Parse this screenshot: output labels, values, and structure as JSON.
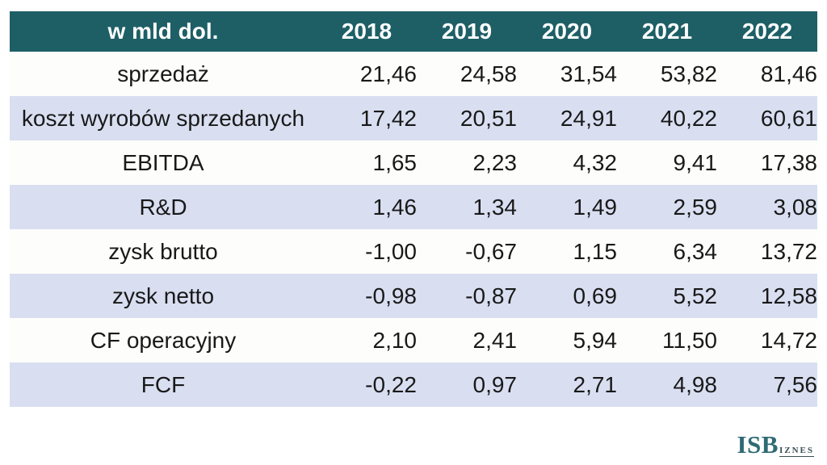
{
  "table": {
    "header": {
      "label": "w mld dol.",
      "years": [
        "2018",
        "2019",
        "2020",
        "2021",
        "2022"
      ]
    },
    "rows": [
      {
        "label": "sprzedaż",
        "values": [
          "21,46",
          "24,58",
          "31,54",
          "53,82",
          "81,46"
        ]
      },
      {
        "label": "koszt wyrobów sprzedanych",
        "values": [
          "17,42",
          "20,51",
          "24,91",
          "40,22",
          "60,61"
        ]
      },
      {
        "label": "EBITDA",
        "values": [
          "1,65",
          "2,23",
          "4,32",
          "9,41",
          "17,38"
        ]
      },
      {
        "label": "R&D",
        "values": [
          "1,46",
          "1,34",
          "1,49",
          "2,59",
          "3,08"
        ]
      },
      {
        "label": "zysk brutto",
        "values": [
          "-1,00",
          "-0,67",
          "1,15",
          "6,34",
          "13,72"
        ]
      },
      {
        "label": "zysk netto",
        "values": [
          "-0,98",
          "-0,87",
          "0,69",
          "5,52",
          "12,58"
        ]
      },
      {
        "label": "CF operacyjny",
        "values": [
          "2,10",
          "2,41",
          "5,94",
          "11,50",
          "14,72"
        ]
      },
      {
        "label": "FCF",
        "values": [
          "-0,22",
          "0,97",
          "2,71",
          "4,98",
          "7,56"
        ]
      }
    ],
    "colors": {
      "header_bg": "#1e5f66",
      "header_text": "#ffffff",
      "band_bg": "#d9dff1",
      "row_bg": "#fdfdfb",
      "text": "#191919"
    }
  },
  "logo": {
    "isb": "ISB",
    "iznes": "IZNES",
    "teal": "#2e6a74",
    "dark": "#3c4e56"
  },
  "chart_data": {
    "type": "table",
    "title": "w mld dol.",
    "columns": [
      "2018",
      "2019",
      "2020",
      "2021",
      "2022"
    ],
    "rows": [
      {
        "label": "sprzedaż",
        "values": [
          21.46,
          24.58,
          31.54,
          53.82,
          81.46
        ]
      },
      {
        "label": "koszt wyrobów sprzedanych",
        "values": [
          17.42,
          20.51,
          24.91,
          40.22,
          60.61
        ]
      },
      {
        "label": "EBITDA",
        "values": [
          1.65,
          2.23,
          4.32,
          9.41,
          17.38
        ]
      },
      {
        "label": "R&D",
        "values": [
          1.46,
          1.34,
          1.49,
          2.59,
          3.08
        ]
      },
      {
        "label": "zysk brutto",
        "values": [
          -1.0,
          -0.67,
          1.15,
          6.34,
          13.72
        ]
      },
      {
        "label": "zysk netto",
        "values": [
          -0.98,
          -0.87,
          0.69,
          5.52,
          12.58
        ]
      },
      {
        "label": "CF operacyjny",
        "values": [
          2.1,
          2.41,
          5.94,
          11.5,
          14.72
        ]
      },
      {
        "label": "FCF",
        "values": [
          -0.22,
          0.97,
          2.71,
          4.98,
          7.56
        ]
      }
    ],
    "layout": {
      "header_background": "#1e5f66",
      "banded_rows": true,
      "band_color": "#d9dff1",
      "number_format": "comma-decimal, 2 places"
    }
  }
}
